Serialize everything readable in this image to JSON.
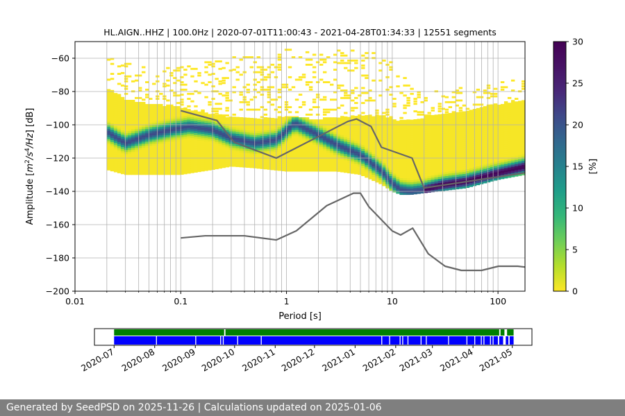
{
  "chart_data": [
    {
      "type": "heatmap",
      "title": "HL.AIGN..HHZ | 100.0Hz | 2020-07-01T11:00:43 - 2021-04-28T01:34:33 | 12551 segments",
      "xlabel": "Period [s]",
      "ylabel_parts": [
        "Amplitude [",
        "m",
        "2",
        "/",
        "s",
        "4",
        "/",
        "Hz",
        "] [dB]"
      ],
      "x_scale": "log",
      "xlim": [
        0.01,
        180
      ],
      "ylim": [
        -200,
        -50
      ],
      "x_ticks": [
        0.01,
        0.1,
        1,
        10,
        100
      ],
      "x_tick_labels": [
        "0.01",
        "0.1",
        "1",
        "10",
        "100"
      ],
      "y_ticks": [
        -200,
        -180,
        -160,
        -140,
        -120,
        -100,
        -80,
        -60
      ],
      "y_tick_labels": [
        "−200",
        "−180",
        "−160",
        "−140",
        "−120",
        "−100",
        "−80",
        "−60"
      ],
      "grid": true,
      "colormap": "viridis_r",
      "colorbar": {
        "label": "[%]",
        "range": [
          0,
          30
        ],
        "ticks": [
          0,
          5,
          10,
          15,
          20,
          25,
          30
        ],
        "tick_labels": [
          "0",
          "5",
          "10",
          "15",
          "20",
          "25",
          "30"
        ]
      },
      "mode_curve": {
        "period": [
          0.02,
          0.025,
          0.03,
          0.05,
          0.08,
          0.12,
          0.2,
          0.3,
          0.5,
          0.8,
          1.2,
          2,
          3,
          5,
          8,
          10,
          12,
          15,
          20,
          30,
          50,
          100,
          180
        ],
        "db": [
          -104,
          -108,
          -111,
          -106,
          -103,
          -101,
          -103,
          -108,
          -111,
          -109,
          -99,
          -106,
          -112,
          -118,
          -128,
          -135,
          -139,
          -140,
          -139,
          -136,
          -134,
          -129,
          -125
        ]
      },
      "density_bands": {
        "period": [
          0.02,
          0.03,
          0.05,
          0.1,
          0.2,
          0.3,
          0.5,
          1,
          2,
          3,
          5,
          8,
          10,
          12,
          15,
          20,
          50,
          100,
          180
        ],
        "lower_db": [
          -127,
          -130,
          -130,
          -130,
          -127,
          -125,
          -126,
          -128,
          -128,
          -128,
          -130,
          -136,
          -140,
          -142,
          -142,
          -141,
          -138,
          -133,
          -130
        ],
        "upper_db": [
          -78,
          -85,
          -88,
          -90,
          -94,
          -96,
          -97,
          -96,
          -97,
          -96,
          -95,
          -95,
          -97,
          -98,
          -98,
          -96,
          -92,
          -88,
          -85
        ],
        "scatter_upper_db": [
          -57,
          -63,
          -66,
          -66,
          -62,
          -60,
          -58,
          -55,
          -58,
          -56,
          -55,
          -58,
          -62,
          -68,
          -75,
          -80,
          -78,
          -75,
          -72
        ]
      },
      "noise_models": [
        {
          "curve": "upper",
          "period": [
            0.1,
            0.22,
            0.32,
            0.8,
            3.8,
            4.6,
            6.3,
            7.9,
            15.4,
            20,
            354.8
          ],
          "db": [
            -91.5,
            -97.4,
            -110.5,
            -120,
            -98,
            -96.5,
            -101,
            -113.5,
            -120,
            -138,
            -126
          ]
        },
        {
          "curve": "lower",
          "period": [
            0.1,
            0.17,
            0.4,
            0.8,
            1.24,
            2.4,
            4.3,
            5.0,
            6.0,
            10.0,
            12.0,
            15.6,
            21.9,
            31.6,
            45,
            70,
            101,
            154,
            180
          ],
          "db": [
            -168,
            -166.7,
            -166.7,
            -169.2,
            -163.7,
            -148.6,
            -141.1,
            -141.1,
            -149.2,
            -163.8,
            -166.2,
            -162.1,
            -177.5,
            -185,
            -187.5,
            -187.5,
            -185,
            -185,
            -185.5
          ]
        }
      ]
    },
    {
      "type": "timeline",
      "x_tick_labels": [
        "2020-07",
        "2020-08",
        "2020-09",
        "2020-10",
        "2020-11",
        "2020-12",
        "2021-01",
        "2021-02",
        "2021-03",
        "2021-04",
        "2021-05"
      ],
      "x_ticks": [
        "2020-07-01",
        "2020-08-01",
        "2020-09-01",
        "2020-10-01",
        "2020-11-01",
        "2020-12-01",
        "2021-01-01",
        "2021-02-01",
        "2021-03-01",
        "2021-04-01",
        "2021-05-01"
      ],
      "xlim": [
        "2020-06-16",
        "2021-05-16"
      ],
      "data_availability": {
        "color": "#008000",
        "segments": [
          [
            "2020-07-01",
            "2020-09-23"
          ],
          [
            "2020-09-24",
            "2021-04-21"
          ],
          [
            "2021-04-22",
            "2021-04-25"
          ],
          [
            "2021-04-27",
            "2021-05-02"
          ]
        ]
      },
      "psd_used": {
        "color": "#0000ff",
        "segments": [
          [
            "2020-07-01",
            "2021-04-20"
          ],
          [
            "2021-04-21",
            "2021-04-24"
          ],
          [
            "2021-04-26",
            "2021-04-28"
          ],
          [
            "2021-04-29",
            "2021-05-02"
          ]
        ],
        "gaps": [
          "2020-08-02",
          "2020-09-01",
          "2020-09-20",
          "2020-09-22",
          "2020-10-03",
          "2020-10-21",
          "2021-01-21",
          "2021-01-27",
          "2021-02-04",
          "2021-02-06",
          "2021-02-10",
          "2021-02-20",
          "2021-02-24",
          "2021-03-13",
          "2021-03-27",
          "2021-04-02",
          "2021-04-07",
          "2021-04-09",
          "2021-04-14",
          "2021-04-16"
        ]
      }
    }
  ],
  "footer": {
    "text": "Generated by SeedPSD on 2025-11-26 | Calculations updated on 2025-01-06"
  }
}
